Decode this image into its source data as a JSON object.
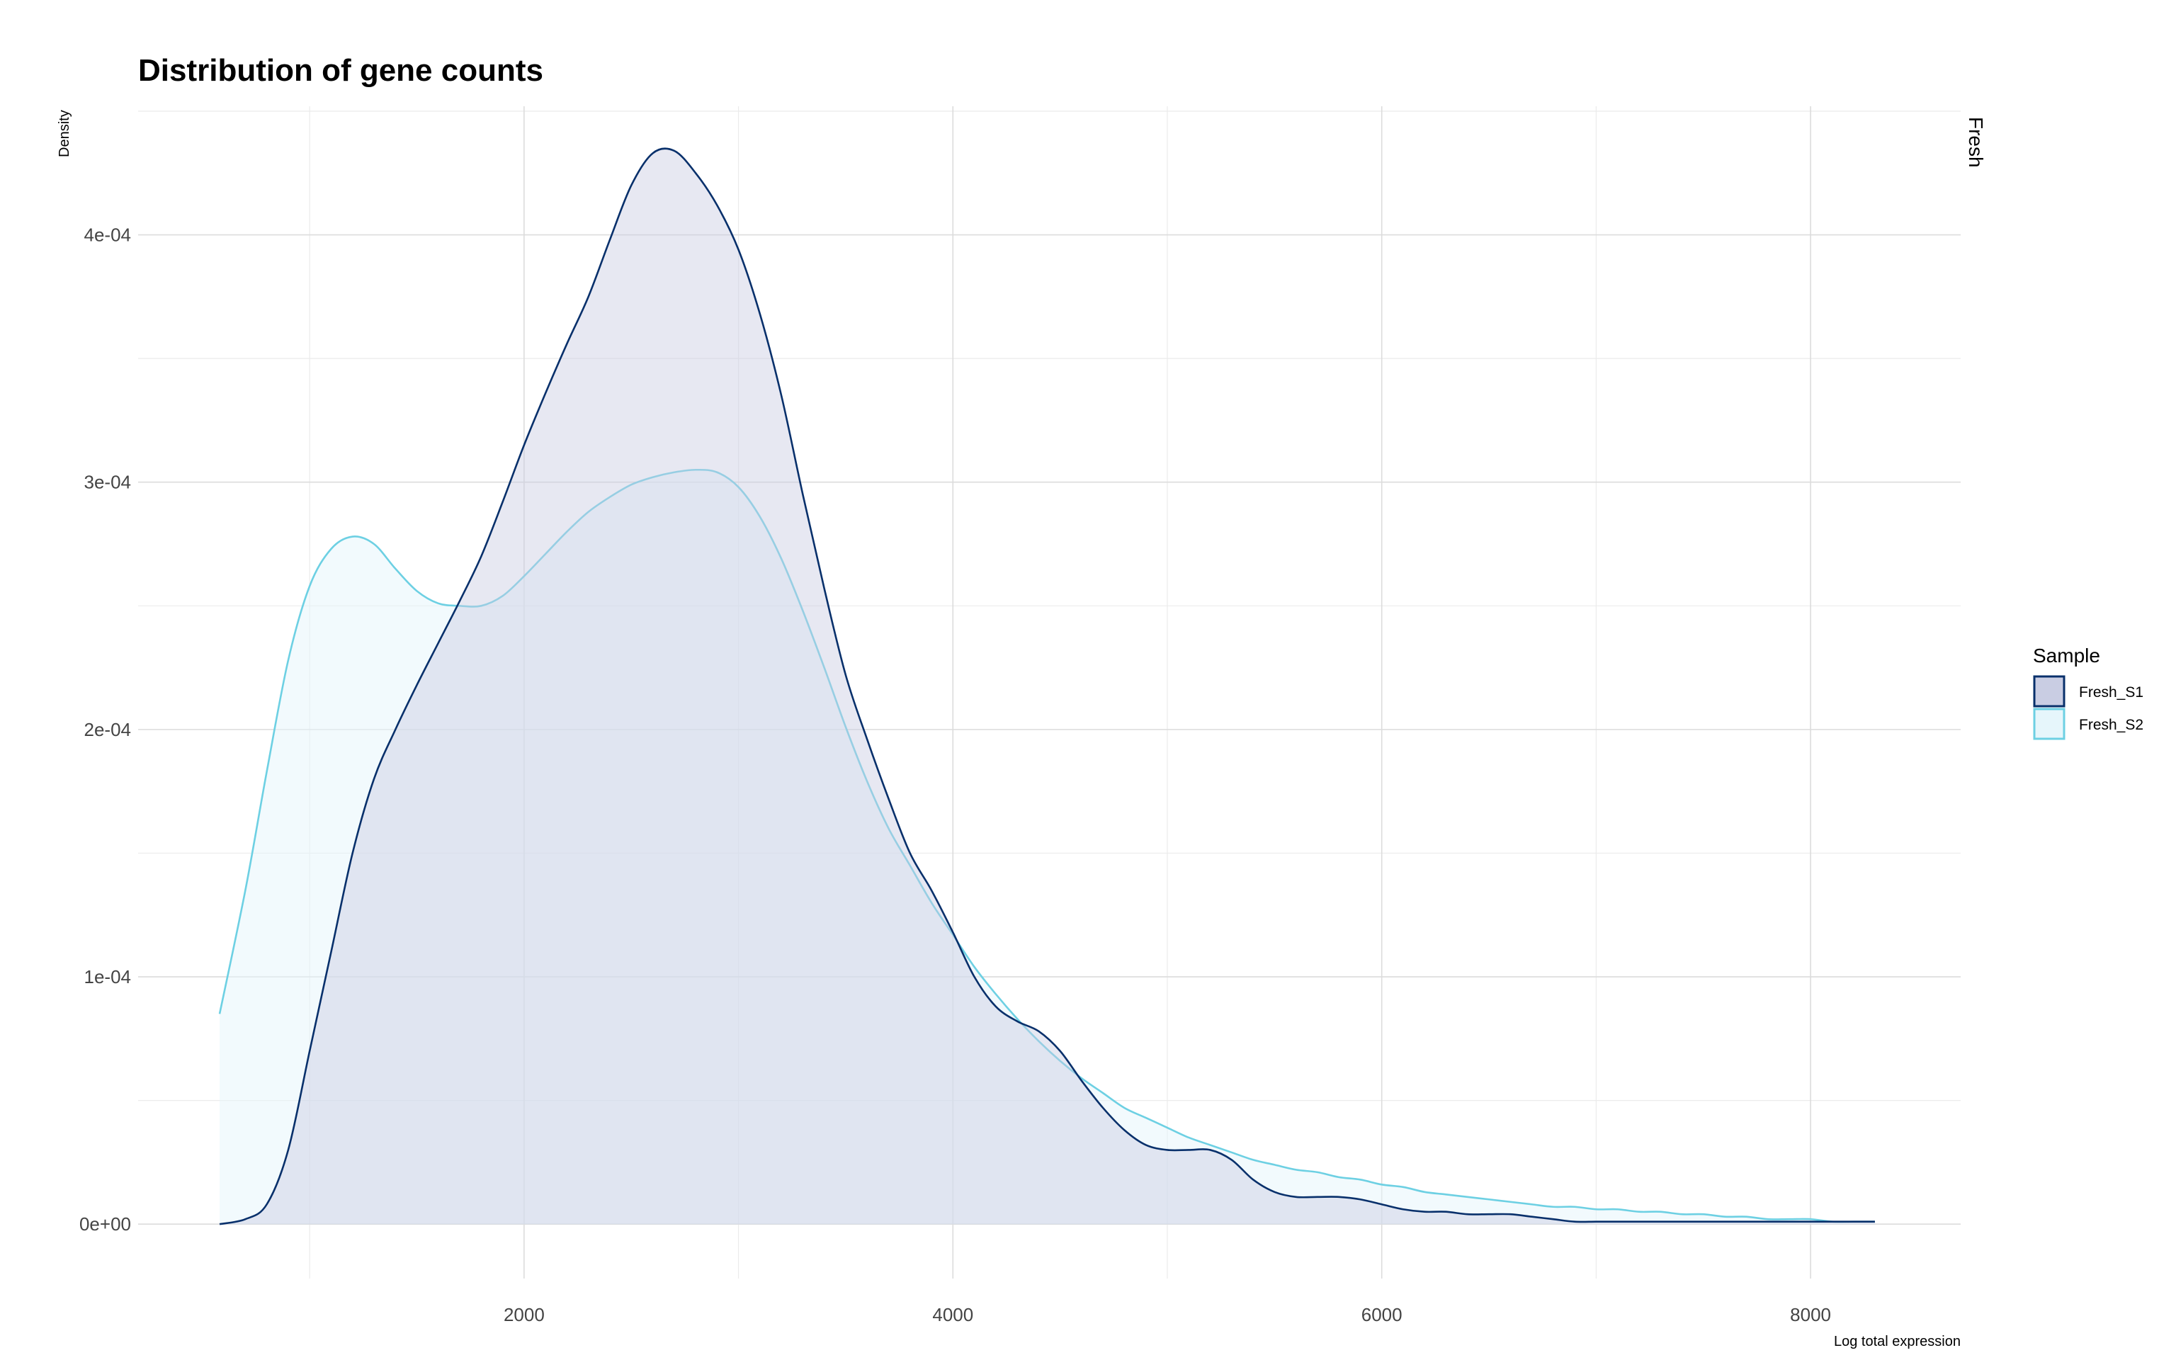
{
  "chart_data": {
    "type": "area",
    "title": "Distribution of gene counts",
    "xlabel": "Log total expression",
    "ylabel": "Density",
    "facet_label": "Fresh",
    "xlim": [
      200,
      8700
    ],
    "ylim": [
      -2.2e-05,
      0.000452
    ],
    "x_ticks": [
      2000,
      4000,
      6000,
      8000
    ],
    "x_minor_ticks": [
      1000,
      3000,
      5000,
      7000
    ],
    "x_tick_labels": [
      "2000",
      "4000",
      "6000",
      "8000"
    ],
    "y_ticks": [
      0,
      0.0001,
      0.0002,
      0.0003,
      0.0004
    ],
    "y_minor_ticks": [
      5e-05,
      0.00015,
      0.00025,
      0.00035,
      0.00045
    ],
    "y_tick_labels": [
      "0e+00",
      "1e-04",
      "2e-04",
      "3e-04",
      "4e-04"
    ],
    "grid": true,
    "legend": {
      "title": "Sample",
      "position": "right"
    },
    "series": [
      {
        "name": "Fresh_S1",
        "line_color": "#08306b",
        "fill_color": "#c9cde3",
        "fill_opacity": 0.45,
        "x": [
          580,
          700,
          800,
          900,
          1000,
          1100,
          1200,
          1300,
          1400,
          1500,
          1600,
          1700,
          1800,
          1900,
          2000,
          2100,
          2200,
          2300,
          2400,
          2500,
          2600,
          2700,
          2800,
          2900,
          3000,
          3100,
          3200,
          3300,
          3400,
          3500,
          3600,
          3700,
          3800,
          3900,
          4000,
          4100,
          4200,
          4300,
          4400,
          4500,
          4600,
          4700,
          4800,
          4900,
          5000,
          5100,
          5200,
          5300,
          5400,
          5500,
          5600,
          5700,
          5800,
          5900,
          6000,
          6100,
          6200,
          6300,
          6400,
          6500,
          6600,
          6700,
          6800,
          6900,
          7000,
          7100,
          7200,
          7300,
          7400,
          7500,
          7600,
          7700,
          7800,
          7900,
          8000,
          8100,
          8200,
          8300
        ],
        "y": [
          0.0,
          2e-06,
          8e-06,
          3e-05,
          7e-05,
          0.00011,
          0.00015,
          0.00018,
          0.0002,
          0.000218,
          0.000235,
          0.000252,
          0.00027,
          0.000292,
          0.000315,
          0.000336,
          0.000356,
          0.000375,
          0.000398,
          0.00042,
          0.000433,
          0.000434,
          0.000425,
          0.000412,
          0.000394,
          0.000368,
          0.000335,
          0.000295,
          0.000257,
          0.000222,
          0.000196,
          0.000172,
          0.00015,
          0.000135,
          0.000118,
          0.0001,
          8.8e-05,
          8.2e-05,
          7.8e-05,
          7e-05,
          5.8e-05,
          4.7e-05,
          3.8e-05,
          3.2e-05,
          3e-05,
          3e-05,
          3e-05,
          2.6e-05,
          1.8e-05,
          1.3e-05,
          1.1e-05,
          1.1e-05,
          1.1e-05,
          1e-05,
          8e-06,
          6e-06,
          5e-06,
          5e-06,
          4e-06,
          4e-06,
          4e-06,
          3e-06,
          2e-06,
          1e-06,
          1e-06,
          1e-06,
          1e-06,
          1e-06,
          1e-06,
          1e-06,
          1e-06,
          1e-06,
          1e-06,
          1e-06,
          1e-06,
          1e-06,
          1e-06,
          1e-06
        ]
      },
      {
        "name": "Fresh_S2",
        "line_color": "#6dd0e3",
        "fill_color": "#e6f6fb",
        "fill_opacity": 0.5,
        "x": [
          580,
          700,
          800,
          900,
          1000,
          1100,
          1200,
          1300,
          1400,
          1500,
          1600,
          1700,
          1800,
          1900,
          2000,
          2100,
          2200,
          2300,
          2400,
          2500,
          2600,
          2700,
          2800,
          2900,
          3000,
          3100,
          3200,
          3300,
          3400,
          3500,
          3600,
          3700,
          3800,
          3900,
          4000,
          4100,
          4200,
          4300,
          4400,
          4500,
          4600,
          4700,
          4800,
          4900,
          5000,
          5100,
          5200,
          5300,
          5400,
          5500,
          5600,
          5700,
          5800,
          5900,
          6000,
          6100,
          6200,
          6300,
          6400,
          6500,
          6600,
          6700,
          6800,
          6900,
          7000,
          7100,
          7200,
          7300,
          7400,
          7500,
          7600,
          7700,
          7800,
          7900,
          8000,
          8100,
          8200,
          8300
        ],
        "y": [
          8.5e-05,
          0.000135,
          0.000183,
          0.000228,
          0.000258,
          0.000273,
          0.000278,
          0.000275,
          0.000265,
          0.000256,
          0.000251,
          0.00025,
          0.00025,
          0.000254,
          0.000262,
          0.000271,
          0.00028,
          0.000288,
          0.000294,
          0.000299,
          0.000302,
          0.000304,
          0.000305,
          0.000304,
          0.000298,
          0.000286,
          0.000269,
          0.000248,
          0.000225,
          0.000201,
          0.000179,
          0.00016,
          0.000145,
          0.00013,
          0.000117,
          0.000104,
          9.3e-05,
          8.3e-05,
          7.4e-05,
          6.6e-05,
          5.9e-05,
          5.3e-05,
          4.7e-05,
          4.3e-05,
          3.9e-05,
          3.5e-05,
          3.2e-05,
          2.9e-05,
          2.6e-05,
          2.4e-05,
          2.2e-05,
          2.1e-05,
          1.9e-05,
          1.8e-05,
          1.6e-05,
          1.5e-05,
          1.3e-05,
          1.2e-05,
          1.1e-05,
          1e-05,
          9e-06,
          8e-06,
          7e-06,
          7e-06,
          6e-06,
          6e-06,
          5e-06,
          5e-06,
          4e-06,
          4e-06,
          3e-06,
          3e-06,
          2e-06,
          2e-06,
          2e-06,
          1e-06,
          1e-06,
          1e-06
        ]
      }
    ]
  }
}
